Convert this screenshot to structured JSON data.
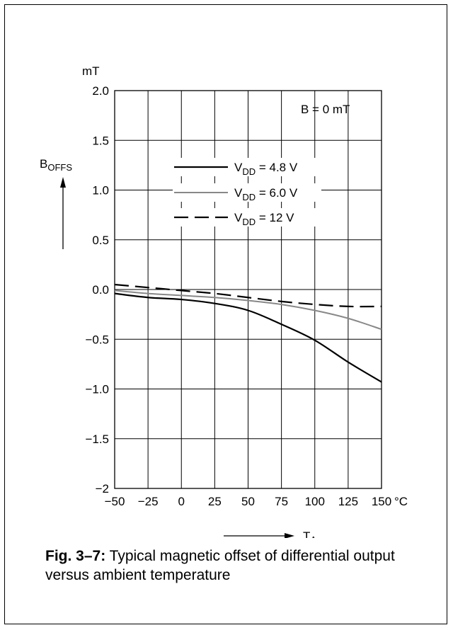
{
  "chart_data": {
    "type": "line",
    "x_ticks": [
      "−50",
      "−25",
      "0",
      "25",
      "50",
      "75",
      "100",
      "125",
      "150"
    ],
    "x_unit": "°C",
    "y_ticks": [
      "2.0",
      "1.5",
      "1.0",
      "0.5",
      "0.0",
      "−0.5",
      "−1.0",
      "−1.5",
      "−2"
    ],
    "y_unit": "mT",
    "ylabel_main": "B",
    "ylabel_sub": "OFFS",
    "xlabel_main": "T",
    "xlabel_sub": "A",
    "xlim": [
      -50,
      150
    ],
    "ylim": [
      -2,
      2
    ],
    "grid": true,
    "annotation": "B = 0 mT",
    "series": [
      {
        "name_main": "V",
        "name_sub": "DD",
        "name_rest": " = 4.8 V",
        "style": "solid",
        "color": "#000000",
        "x": [
          -50,
          -25,
          0,
          25,
          50,
          75,
          100,
          125,
          150
        ],
        "y": [
          -0.04,
          -0.08,
          -0.1,
          -0.14,
          -0.21,
          -0.35,
          -0.51,
          -0.73,
          -0.93
        ]
      },
      {
        "name_main": "V",
        "name_sub": "DD",
        "name_rest": " = 6.0 V",
        "style": "solid",
        "color": "#888888",
        "x": [
          -50,
          -25,
          0,
          25,
          50,
          75,
          100,
          125,
          150
        ],
        "y": [
          -0.01,
          -0.04,
          -0.06,
          -0.08,
          -0.11,
          -0.15,
          -0.21,
          -0.29,
          -0.4
        ]
      },
      {
        "name_main": "V",
        "name_sub": "DD",
        "name_rest": " = 12 V",
        "style": "dashed",
        "color": "#000000",
        "x": [
          -50,
          -25,
          0,
          25,
          50,
          75,
          100,
          125,
          150
        ],
        "y": [
          0.05,
          0.02,
          -0.01,
          -0.04,
          -0.08,
          -0.12,
          -0.15,
          -0.17,
          -0.17
        ]
      }
    ]
  },
  "caption": {
    "fig_label": "Fig. 3–7:",
    "text": " Typical magnetic offset of differential output versus ambient temperature"
  }
}
